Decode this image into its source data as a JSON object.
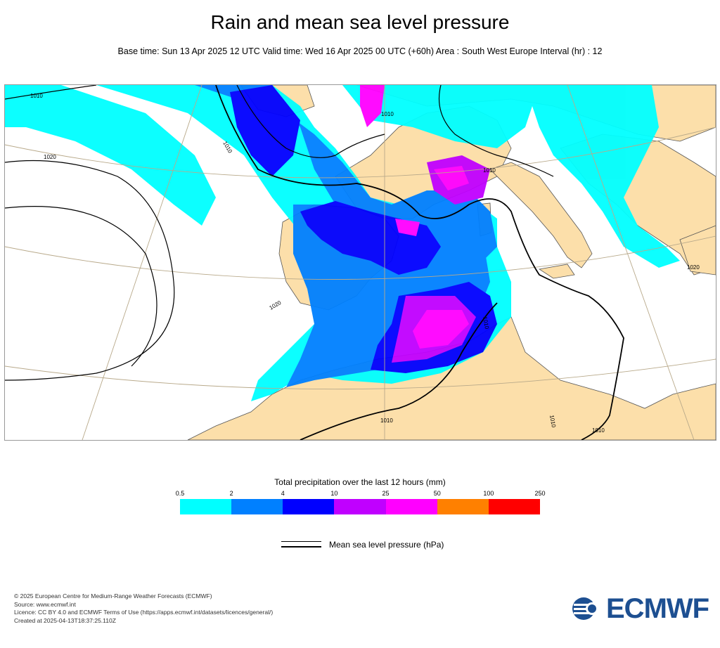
{
  "header": {
    "title": "Rain and mean sea level pressure",
    "subtitle": "Base time: Sun 13 Apr 2025 12 UTC Valid time: Wed 16 Apr 2025 00 UTC (+60h) Area : South West Europe Interval (hr) : 12"
  },
  "map": {
    "isobar_labels": [
      "1010",
      "1010",
      "1010",
      "1020",
      "1020",
      "1010",
      "1010",
      "1010",
      "1020",
      "1010",
      "1010"
    ],
    "colors": {
      "land": "#fcdfaa",
      "sea": "#ffffff"
    }
  },
  "legend": {
    "title": "Total precipitation over the last 12 hours (mm)",
    "ticks": [
      "0.5",
      "2",
      "4",
      "10",
      "25",
      "50",
      "100",
      "250"
    ],
    "colors": [
      "#00ffff",
      "#0080ff",
      "#0000ff",
      "#c000ff",
      "#ff00ff",
      "#ff8000",
      "#ff0000"
    ],
    "isobar_label": "Mean sea level pressure (hPa)"
  },
  "footer": {
    "lines": [
      "© 2025 European Centre for Medium-Range Weather Forecasts (ECMWF)",
      "Source: www.ecmwf.int",
      "Licence: CC BY 4.0 and ECMWF Terms of Use (https://apps.ecmwf.int/datasets/licences/general/)",
      "Created at 2025-04-13T18:37:25.110Z"
    ],
    "logo_text": "ECMWF"
  }
}
